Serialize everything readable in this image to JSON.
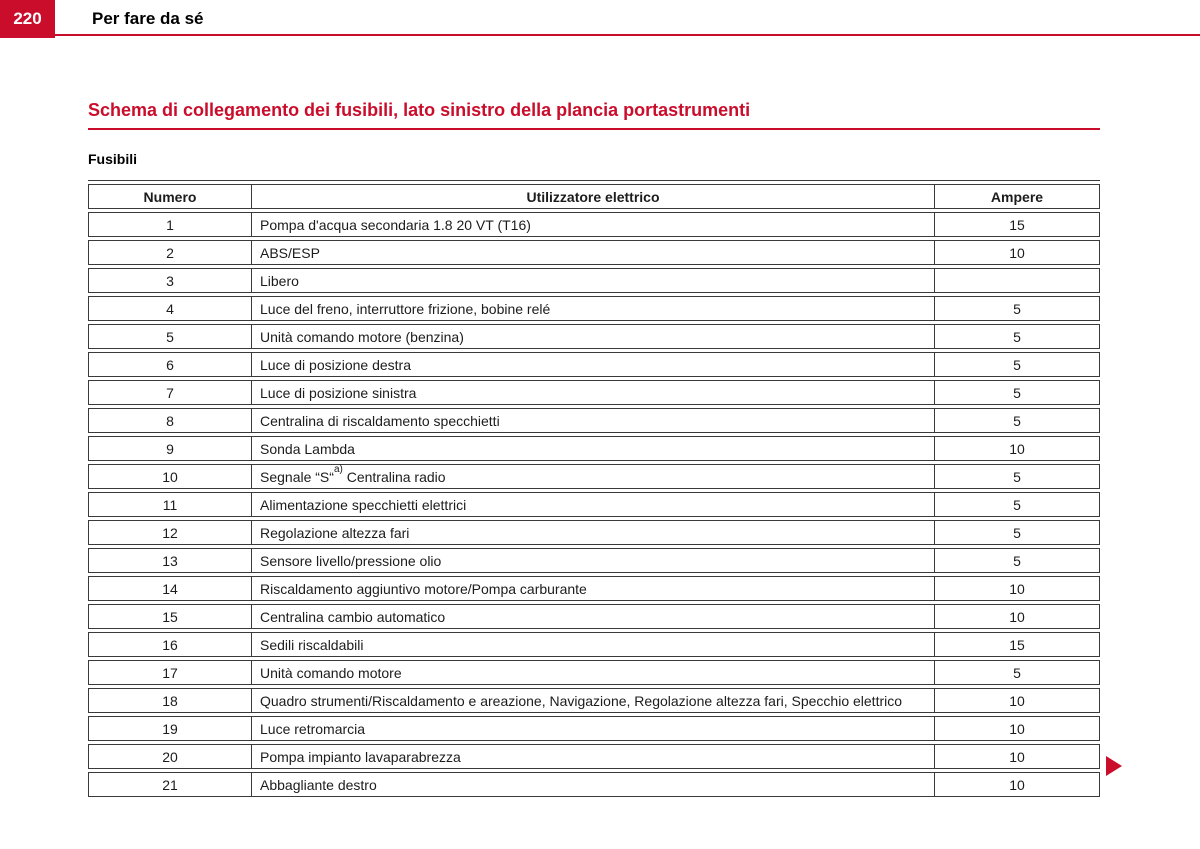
{
  "page": {
    "number": "220",
    "chapter": "Per fare da sé"
  },
  "section": {
    "title": "Schema di collegamento dei fusibili, lato sinistro della plancia portastrumenti",
    "subtitle": "Fusibili"
  },
  "table": {
    "headers": [
      "Numero",
      "Utilizzatore elettrico",
      "Ampere"
    ],
    "rows": [
      {
        "numero": "1",
        "utilizzatore": "Pompa d'acqua secondaria 1.8 20 VT (T16)",
        "ampere": "15"
      },
      {
        "numero": "2",
        "utilizzatore": "ABS/ESP",
        "ampere": "10"
      },
      {
        "numero": "3",
        "utilizzatore": "Libero",
        "ampere": ""
      },
      {
        "numero": "4",
        "utilizzatore": "Luce del freno, interruttore frizione, bobine relé",
        "ampere": "5"
      },
      {
        "numero": "5",
        "utilizzatore": "Unità comando motore (benzina)",
        "ampere": "5"
      },
      {
        "numero": "6",
        "utilizzatore": "Luce di posizione destra",
        "ampere": "5"
      },
      {
        "numero": "7",
        "utilizzatore": "Luce di posizione sinistra",
        "ampere": "5"
      },
      {
        "numero": "8",
        "utilizzatore": "Centralina di riscaldamento specchietti",
        "ampere": "5"
      },
      {
        "numero": "9",
        "utilizzatore": "Sonda Lambda",
        "ampere": "10"
      },
      {
        "numero": "10",
        "utilizzatore_pre": "Segnale “S“",
        "utilizzatore_sup": "a)",
        "utilizzatore_post": " Centralina radio",
        "ampere": "5"
      },
      {
        "numero": "11",
        "utilizzatore": "Alimentazione specchietti elettrici",
        "ampere": "5"
      },
      {
        "numero": "12",
        "utilizzatore": "Regolazione altezza fari",
        "ampere": "5"
      },
      {
        "numero": "13",
        "utilizzatore": "Sensore livello/pressione olio",
        "ampere": "5"
      },
      {
        "numero": "14",
        "utilizzatore": "Riscaldamento aggiuntivo motore/Pompa carburante",
        "ampere": "10"
      },
      {
        "numero": "15",
        "utilizzatore": "Centralina cambio automatico",
        "ampere": "10"
      },
      {
        "numero": "16",
        "utilizzatore": "Sedili riscaldabili",
        "ampere": "15"
      },
      {
        "numero": "17",
        "utilizzatore": "Unità comando motore",
        "ampere": "5"
      },
      {
        "numero": "18",
        "utilizzatore": "Quadro strumenti/Riscaldamento e areazione, Navigazione, Regolazione altezza fari, Specchio elettrico",
        "ampere": "10"
      },
      {
        "numero": "19",
        "utilizzatore": "Luce retromarcia",
        "ampere": "10"
      },
      {
        "numero": "20",
        "utilizzatore": "Pompa impianto lavaparabrezza",
        "ampere": "10"
      },
      {
        "numero": "21",
        "utilizzatore": "Abbagliante destro",
        "ampere": "10"
      }
    ]
  },
  "icons": {
    "continuation_arrow": "right-triangle-icon"
  },
  "colors": {
    "accent_red": "#cb0d2c",
    "table_border": "#3a3a3a"
  }
}
